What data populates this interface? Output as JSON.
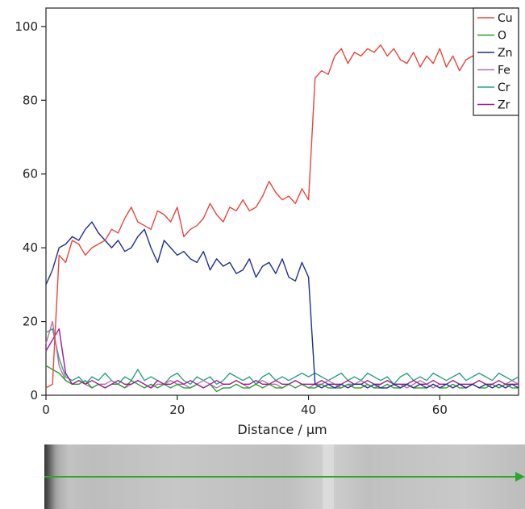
{
  "chart_data": {
    "type": "line",
    "title": "",
    "xlabel": "Distance / µm",
    "ylabel": "",
    "xlim": [
      0,
      72
    ],
    "ylim": [
      0,
      105
    ],
    "x_ticks": [
      "0",
      "20",
      "40",
      "60"
    ],
    "y_ticks": [
      "0",
      "20",
      "40",
      "60",
      "80",
      "100"
    ],
    "grid": false,
    "legend_position": "top-right",
    "series": [
      {
        "name": "Cu",
        "color": "#e8453c",
        "x": [
          0,
          1,
          2,
          3,
          4,
          5,
          6,
          7,
          8,
          9,
          10,
          11,
          12,
          13,
          14,
          15,
          16,
          17,
          18,
          19,
          20,
          21,
          22,
          23,
          24,
          25,
          26,
          27,
          28,
          29,
          30,
          31,
          32,
          33,
          34,
          35,
          36,
          37,
          38,
          39,
          40,
          41,
          42,
          43,
          44,
          45,
          46,
          47,
          48,
          49,
          50,
          51,
          52,
          53,
          54,
          55,
          56,
          57,
          58,
          59,
          60,
          61,
          62,
          63,
          64,
          65,
          66,
          67,
          68,
          69,
          70,
          71,
          72
        ],
        "y": [
          2,
          3,
          38,
          36,
          42,
          41,
          38,
          40,
          41,
          42,
          45,
          44,
          48,
          51,
          47,
          46,
          45,
          50,
          49,
          47,
          51,
          43,
          45,
          46,
          48,
          52,
          49,
          47,
          51,
          50,
          53,
          50,
          51,
          54,
          58,
          55,
          53,
          54,
          52,
          56,
          53,
          86,
          88,
          87,
          92,
          94,
          90,
          93,
          92,
          94,
          93,
          95,
          92,
          94,
          91,
          90,
          93,
          89,
          92,
          90,
          94,
          89,
          92,
          88,
          91,
          92,
          90,
          88,
          92,
          91,
          93,
          90,
          92
        ]
      },
      {
        "name": "O",
        "color": "#2ca02c",
        "x": [
          0,
          1,
          2,
          3,
          4,
          5,
          6,
          7,
          8,
          9,
          10,
          11,
          12,
          13,
          14,
          15,
          16,
          17,
          18,
          19,
          20,
          21,
          22,
          23,
          24,
          25,
          26,
          27,
          28,
          29,
          30,
          31,
          32,
          33,
          34,
          35,
          36,
          37,
          38,
          39,
          40,
          41,
          42,
          43,
          44,
          45,
          46,
          47,
          48,
          49,
          50,
          51,
          52,
          53,
          54,
          55,
          56,
          57,
          58,
          59,
          60,
          61,
          62,
          63,
          64,
          65,
          66,
          67,
          68,
          69,
          70,
          71,
          72
        ],
        "y": [
          8,
          7,
          6,
          4,
          3,
          3,
          4,
          2,
          3,
          2,
          3,
          3,
          2,
          4,
          3,
          2,
          3,
          2,
          3,
          2,
          3,
          2,
          2,
          3,
          2,
          3,
          1,
          2,
          2,
          3,
          2,
          2,
          3,
          2,
          3,
          2,
          2,
          3,
          2,
          3,
          2,
          2,
          3,
          2,
          2,
          2,
          3,
          2,
          2,
          3,
          2,
          2,
          3,
          2,
          2,
          3,
          2,
          2,
          2,
          3,
          2,
          2,
          3,
          2,
          2,
          3,
          2,
          2,
          3,
          2,
          3,
          2,
          2
        ]
      },
      {
        "name": "Zn",
        "color": "#1f2f8c",
        "x": [
          0,
          1,
          2,
          3,
          4,
          5,
          6,
          7,
          8,
          9,
          10,
          11,
          12,
          13,
          14,
          15,
          16,
          17,
          18,
          19,
          20,
          21,
          22,
          23,
          24,
          25,
          26,
          27,
          28,
          29,
          30,
          31,
          32,
          33,
          34,
          35,
          36,
          37,
          38,
          39,
          40,
          41,
          42,
          43,
          44,
          45,
          46,
          47,
          48,
          49,
          50,
          51,
          52,
          53,
          54,
          55,
          56,
          57,
          58,
          59,
          60,
          61,
          62,
          63,
          64,
          65,
          66,
          67,
          68,
          69,
          70,
          71,
          72
        ],
        "y": [
          30,
          34,
          40,
          41,
          43,
          42,
          45,
          47,
          44,
          42,
          40,
          42,
          39,
          40,
          43,
          45,
          40,
          36,
          42,
          40,
          38,
          39,
          37,
          36,
          39,
          34,
          37,
          35,
          36,
          33,
          34,
          37,
          32,
          35,
          36,
          33,
          37,
          32,
          31,
          36,
          32,
          3,
          2,
          3,
          2,
          3,
          2,
          3,
          3,
          2,
          3,
          2,
          2,
          3,
          2,
          3,
          2,
          3,
          2,
          3,
          2,
          3,
          2,
          3,
          2,
          3,
          2,
          3,
          2,
          3,
          2,
          3,
          2
        ]
      },
      {
        "name": "Fe",
        "color": "#b86ea8",
        "x": [
          0,
          1,
          2,
          3,
          4,
          5,
          6,
          7,
          8,
          9,
          10,
          11,
          12,
          13,
          14,
          15,
          16,
          17,
          18,
          19,
          20,
          21,
          22,
          23,
          24,
          25,
          26,
          27,
          28,
          29,
          30,
          31,
          32,
          33,
          34,
          35,
          36,
          37,
          38,
          39,
          40,
          41,
          42,
          43,
          44,
          45,
          46,
          47,
          48,
          49,
          50,
          51,
          52,
          53,
          54,
          55,
          56,
          57,
          58,
          59,
          60,
          61,
          62,
          63,
          64,
          65,
          66,
          67,
          68,
          69,
          70,
          71,
          72
        ],
        "y": [
          14,
          20,
          8,
          4,
          3,
          4,
          3,
          2,
          3,
          3,
          4,
          3,
          2,
          3,
          4,
          3,
          2,
          3,
          3,
          4,
          3,
          3,
          2,
          3,
          4,
          3,
          2,
          3,
          3,
          4,
          3,
          2,
          3,
          4,
          3,
          3,
          2,
          3,
          4,
          3,
          2,
          3,
          3,
          4,
          3,
          2,
          3,
          3,
          4,
          3,
          2,
          3,
          4,
          3,
          3,
          2,
          3,
          4,
          3,
          2,
          3,
          3,
          4,
          3,
          2,
          3,
          4,
          3,
          3,
          2,
          3,
          4,
          3
        ]
      },
      {
        "name": "Cr",
        "color": "#29a383",
        "x": [
          0,
          1,
          2,
          3,
          4,
          5,
          6,
          7,
          8,
          9,
          10,
          11,
          12,
          13,
          14,
          15,
          16,
          17,
          18,
          19,
          20,
          21,
          22,
          23,
          24,
          25,
          26,
          27,
          28,
          29,
          30,
          31,
          32,
          33,
          34,
          35,
          36,
          37,
          38,
          39,
          40,
          41,
          42,
          43,
          44,
          45,
          46,
          47,
          48,
          49,
          50,
          51,
          52,
          53,
          54,
          55,
          56,
          57,
          58,
          59,
          60,
          61,
          62,
          63,
          64,
          65,
          66,
          67,
          68,
          69,
          70,
          71,
          72
        ],
        "y": [
          17,
          18,
          10,
          5,
          4,
          5,
          3,
          5,
          4,
          6,
          4,
          3,
          5,
          4,
          7,
          4,
          5,
          4,
          3,
          5,
          6,
          4,
          3,
          5,
          4,
          5,
          3,
          4,
          6,
          5,
          4,
          5,
          3,
          5,
          6,
          4,
          5,
          4,
          5,
          6,
          5,
          6,
          5,
          4,
          5,
          6,
          4,
          5,
          4,
          6,
          5,
          4,
          5,
          3,
          5,
          6,
          4,
          5,
          4,
          6,
          5,
          4,
          5,
          6,
          4,
          5,
          6,
          5,
          4,
          6,
          5,
          4,
          5
        ]
      },
      {
        "name": "Zr",
        "color": "#a0189a",
        "x": [
          0,
          1,
          2,
          3,
          4,
          5,
          6,
          7,
          8,
          9,
          10,
          11,
          12,
          13,
          14,
          15,
          16,
          17,
          18,
          19,
          20,
          21,
          22,
          23,
          24,
          25,
          26,
          27,
          28,
          29,
          30,
          31,
          32,
          33,
          34,
          35,
          36,
          37,
          38,
          39,
          40,
          41,
          42,
          43,
          44,
          45,
          46,
          47,
          48,
          49,
          50,
          51,
          52,
          53,
          54,
          55,
          56,
          57,
          58,
          59,
          60,
          61,
          62,
          63,
          64,
          65,
          66,
          67,
          68,
          69,
          70,
          71,
          72
        ],
        "y": [
          12,
          15,
          18,
          6,
          3,
          4,
          3,
          4,
          3,
          2,
          3,
          4,
          3,
          3,
          4,
          3,
          2,
          4,
          3,
          3,
          4,
          3,
          4,
          3,
          2,
          3,
          4,
          3,
          3,
          4,
          3,
          3,
          4,
          3,
          3,
          4,
          3,
          3,
          4,
          3,
          3,
          3,
          4,
          3,
          3,
          3,
          4,
          3,
          3,
          4,
          3,
          3,
          4,
          3,
          3,
          3,
          4,
          3,
          3,
          4,
          3,
          3,
          4,
          3,
          3,
          3,
          4,
          3,
          3,
          4,
          3,
          3,
          3
        ]
      }
    ]
  }
}
